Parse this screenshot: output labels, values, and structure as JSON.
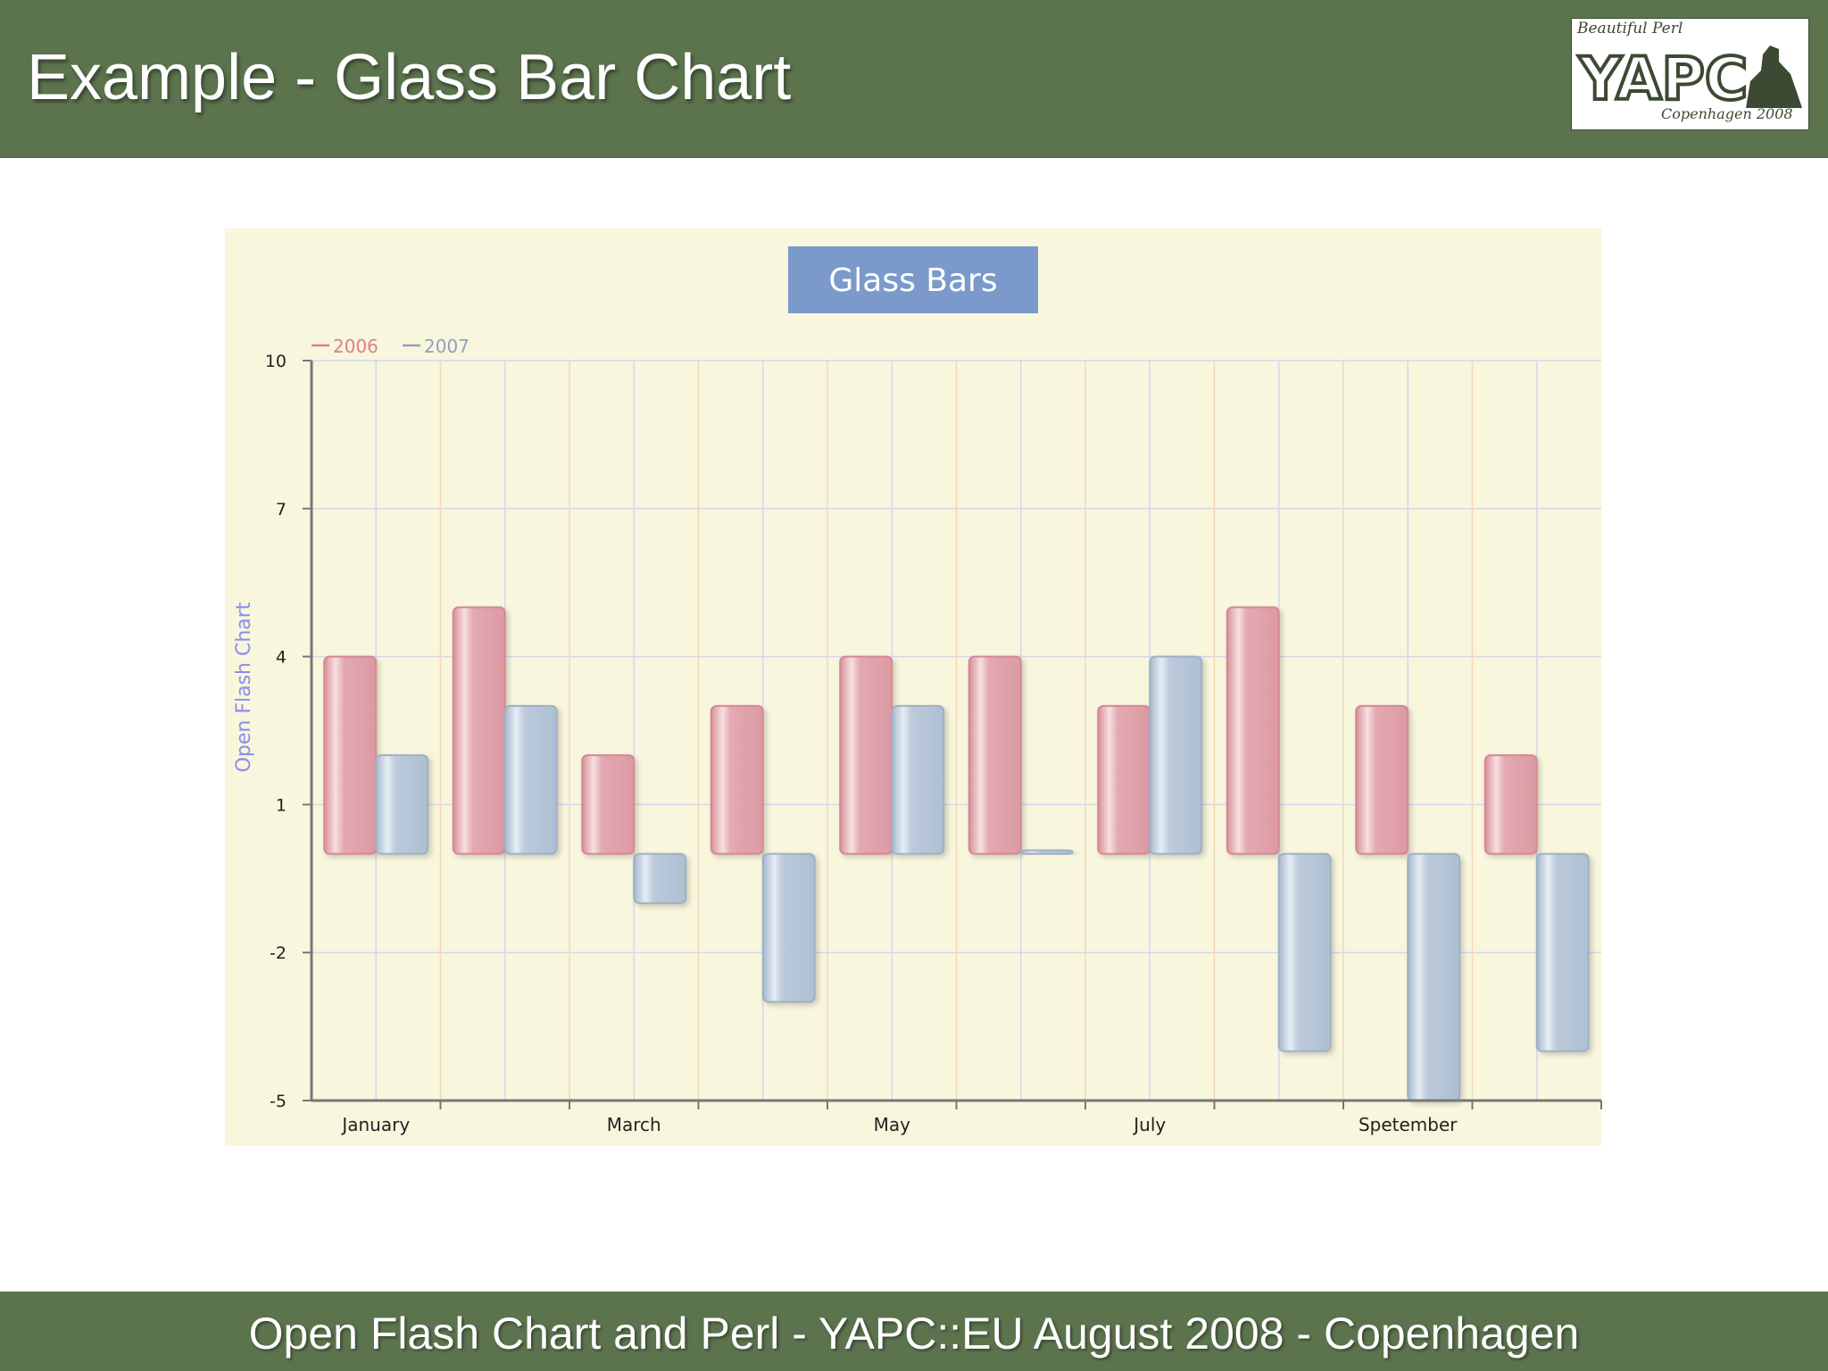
{
  "slide": {
    "title": "Example - Glass Bar Chart",
    "footer": "Open Flash Chart and Perl - YAPC::EU August 2008 - Copenhagen"
  },
  "logo": {
    "top_text": "Beautiful Perl",
    "main_text": "YAPC",
    "bottom_text": "Copenhagen 2008"
  },
  "colors": {
    "header_bg": "#5c744e",
    "chart_bg": "#f8f6dc",
    "title_box": "#7b9acb",
    "series_2006": "#e0a6ae",
    "series_2007": "#b8c6d8",
    "ylabel": "#8c8cf0"
  },
  "chart_data": {
    "type": "bar",
    "style": "glass",
    "title": "Glass Bars",
    "ylabel": "Open Flash Chart",
    "xlabel": "",
    "categories": [
      "January",
      "",
      "March",
      "",
      "May",
      "",
      "July",
      "",
      "Spetember",
      ""
    ],
    "series": [
      {
        "name": "2006",
        "values": [
          4,
          5,
          2,
          3,
          4,
          4,
          3,
          5,
          3,
          2
        ]
      },
      {
        "name": "2007",
        "values": [
          2,
          3,
          -1,
          -3,
          3,
          0,
          4,
          -4,
          -5,
          -4
        ]
      }
    ],
    "ylim": [
      -5,
      10
    ],
    "yticks": [
      10,
      7,
      4,
      1,
      -2,
      -5
    ],
    "grid": true,
    "legend": "top-left"
  }
}
